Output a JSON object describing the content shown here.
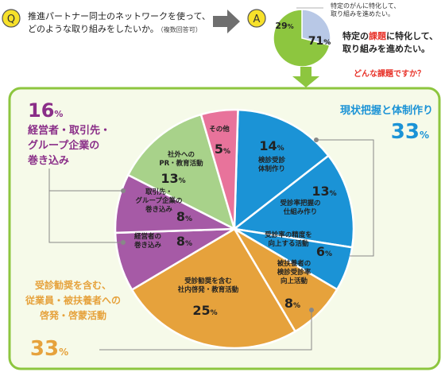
{
  "question": {
    "badge": "Q",
    "line1": "推進パートナー同士のネットワークを使って、",
    "line2": "どのような取り組みをしたいか。",
    "note": "（複数回答可）"
  },
  "answer": {
    "badge": "A",
    "callout_line1": "特定のがんに特化して、",
    "callout_line2": "取り組みを進めたい。",
    "text_line1_pre": "特定の",
    "text_line1_highlight": "課題",
    "text_line1_post": "に特化して、",
    "text_line2": "取り組みを進めたい。",
    "followup": "どんな課題ですか？"
  },
  "colors": {
    "green": "#8dc63f",
    "blue": "#1b93d6",
    "orange": "#e6a23c",
    "purple": "#a65aa6",
    "light_green": "#a8d28a",
    "pink": "#e8739b",
    "lavender": "#b8c8e6",
    "border_green": "#8dc63f",
    "bg_green": "#f4f9e8"
  },
  "chart_data": [
    {
      "type": "pie",
      "slices": [
        {
          "label": "",
          "value": 29,
          "value_label": "29%",
          "color": "#b8c8e6"
        },
        {
          "label": "特定の課題に特化して、取り組みを進めたい。",
          "value": 71,
          "value_label": "71%",
          "color": "#8dc63f"
        }
      ]
    },
    {
      "type": "pie",
      "slices": [
        {
          "lines": [
            "検診受診",
            "体制作り"
          ],
          "value": 14,
          "value_label": "14%",
          "color": "#1b93d6"
        },
        {
          "lines": [
            "受診率把握の",
            "仕組み作り"
          ],
          "value": 13,
          "value_label": "13%",
          "color": "#1b93d6"
        },
        {
          "lines": [
            "受診率の精度を",
            "向上する活動"
          ],
          "value": 6,
          "value_label": "6%",
          "color": "#1b93d6"
        },
        {
          "lines": [
            "被扶養者の",
            "検診受診率",
            "向上活動"
          ],
          "value": 8,
          "value_label": "8%",
          "color": "#e6a23c"
        },
        {
          "lines": [
            "受診勧奨を含む",
            "社内啓発・教育活動"
          ],
          "value": 25,
          "value_label": "25%",
          "color": "#e6a23c"
        },
        {
          "lines": [
            "経営者の",
            "巻き込み"
          ],
          "value": 8,
          "value_label": "8%",
          "color": "#a65aa6"
        },
        {
          "lines": [
            "取引先・",
            "グループ企業の",
            "巻き込み"
          ],
          "value": 8,
          "value_label": "8%",
          "color": "#a65aa6"
        },
        {
          "lines": [
            "社外への",
            "PR・教育活動"
          ],
          "value": 13,
          "value_label": "13%",
          "color": "#a8d28a"
        },
        {
          "lines": [
            "その他"
          ],
          "value": 5,
          "value_label": "5%",
          "color": "#e8739b"
        }
      ],
      "groups": [
        {
          "title_lines": [
            "現状把握と体制作り"
          ],
          "value_label": "33%",
          "color": "#1b93d6"
        },
        {
          "title_lines": [
            "経営者・取引先・",
            "グループ企業の",
            "巻き込み"
          ],
          "value_label": "16%",
          "color": "#8a2e88"
        },
        {
          "title_lines": [
            "受診勧奨を含む、",
            "従業員・被扶養者への",
            "啓発・啓蒙活動"
          ],
          "value_label": "33%",
          "color": "#e6a23c"
        }
      ]
    }
  ]
}
